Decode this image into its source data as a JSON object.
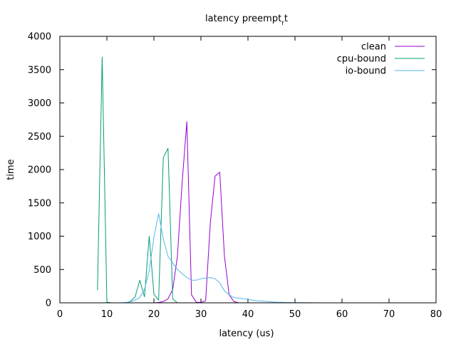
{
  "chart_data": {
    "type": "line",
    "title": "latency preempt_rt",
    "title_main": "latency preempt",
    "title_sub": "r",
    "title_tail": "t",
    "xlabel": "latency (us)",
    "ylabel": "time",
    "xlim": [
      0,
      80
    ],
    "ylim": [
      0,
      4000
    ],
    "xticks": [
      0,
      10,
      20,
      30,
      40,
      50,
      60,
      70,
      80
    ],
    "yticks": [
      0,
      500,
      1000,
      1500,
      2000,
      2500,
      3000,
      3500,
      4000
    ],
    "legend_position": "top-right",
    "grid": false,
    "series": [
      {
        "name": "clean",
        "color": "#9400d3",
        "x": [
          20,
          21,
          22,
          23,
          24,
          25,
          26,
          27,
          28,
          29,
          30,
          31,
          32,
          33,
          34,
          35,
          36,
          37,
          38
        ],
        "y": [
          0,
          5,
          20,
          60,
          200,
          700,
          1800,
          2720,
          120,
          10,
          5,
          30,
          1200,
          1900,
          1960,
          700,
          120,
          20,
          0
        ]
      },
      {
        "name": "cpu-bound",
        "color": "#009e73",
        "x": [
          8,
          9,
          10,
          11,
          12,
          13,
          14,
          15,
          16,
          17,
          18,
          19,
          20,
          21,
          22,
          23,
          24,
          25
        ],
        "y": [
          190,
          3690,
          10,
          0,
          0,
          0,
          0,
          20,
          90,
          340,
          90,
          1000,
          130,
          40,
          2180,
          2320,
          60,
          0
        ]
      },
      {
        "name": "io-bound",
        "color": "#56b4e9",
        "x": [
          13,
          14,
          15,
          16,
          17,
          18,
          19,
          20,
          21,
          22,
          23,
          24,
          25,
          26,
          27,
          28,
          29,
          30,
          31,
          32,
          33,
          34,
          35,
          36,
          37,
          38,
          39,
          40,
          41,
          42,
          43,
          44,
          45,
          46,
          47,
          48,
          50,
          52,
          55
        ],
        "y": [
          0,
          5,
          15,
          40,
          80,
          200,
          480,
          980,
          1340,
          960,
          700,
          600,
          500,
          440,
          380,
          340,
          340,
          360,
          370,
          380,
          360,
          300,
          180,
          120,
          80,
          70,
          60,
          50,
          40,
          30,
          25,
          20,
          15,
          10,
          8,
          5,
          3,
          2,
          0
        ]
      }
    ]
  }
}
